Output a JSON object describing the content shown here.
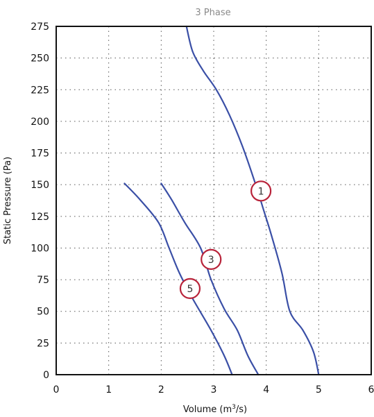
{
  "chart_data": {
    "type": "line",
    "title": "3 Phase",
    "xlabel": "Volume (m",
    "xlabel_sup": "3",
    "xlabel_tail": "/s)",
    "ylabel": "Static Pressure (Pa)",
    "xlim": [
      0,
      6
    ],
    "ylim": [
      0,
      275
    ],
    "x_ticks": [
      "0",
      "1",
      "2",
      "3",
      "4",
      "5",
      "6"
    ],
    "y_ticks": [
      "0",
      "25",
      "50",
      "75",
      "100",
      "125",
      "150",
      "175",
      "200",
      "225",
      "250",
      "275"
    ],
    "grid": true,
    "line_color": "#3a4fa6",
    "label_color": "#b8233a",
    "series": [
      {
        "name": "1",
        "x": [
          2.48,
          2.6,
          2.8,
          3.05,
          3.3,
          3.55,
          3.8,
          3.95,
          4.1,
          4.3,
          4.45,
          4.7,
          4.9,
          5.0
        ],
        "y": [
          276,
          255,
          240,
          225,
          205,
          180,
          150,
          130,
          110,
          80,
          50,
          35,
          18,
          0
        ],
        "label": "1",
        "label_pos": [
          3.9,
          145
        ]
      },
      {
        "name": "3",
        "x": [
          2.0,
          2.2,
          2.45,
          2.75,
          2.95,
          3.2,
          3.45,
          3.65,
          3.85
        ],
        "y": [
          151,
          138,
          120,
          100,
          75,
          52,
          35,
          15,
          0
        ],
        "label": "3",
        "label_pos": [
          2.95,
          91
        ]
      },
      {
        "name": "5",
        "x": [
          1.3,
          1.6,
          1.95,
          2.15,
          2.35,
          2.6,
          2.95,
          3.2,
          3.35
        ],
        "y": [
          151,
          138,
          120,
          100,
          80,
          60,
          35,
          15,
          0
        ],
        "label": "5",
        "label_pos": [
          2.55,
          68
        ]
      }
    ]
  }
}
